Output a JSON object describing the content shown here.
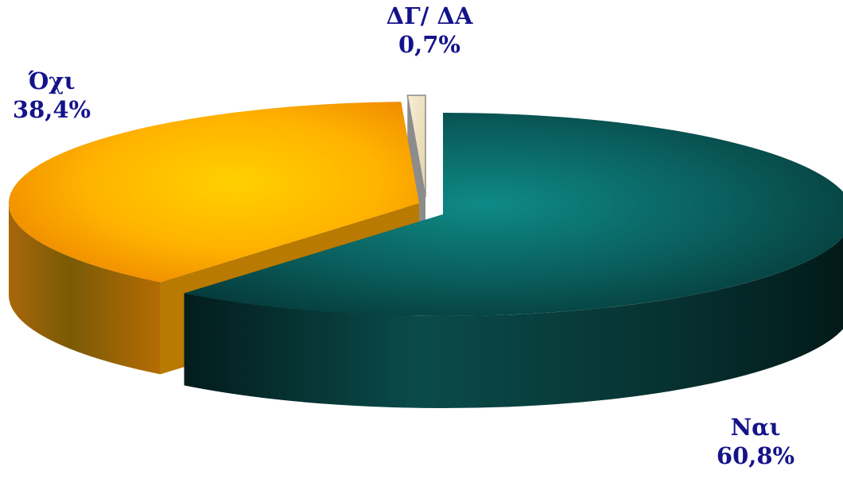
{
  "chart_data": {
    "type": "pie",
    "style": "3d-exploded",
    "slices": [
      {
        "key": "yes",
        "label": "Ναι",
        "value": 60.8,
        "value_label": "60,8%",
        "color": "#0b6e6c"
      },
      {
        "key": "no",
        "label": "Όχι",
        "value": 38.4,
        "value_label": "38,4%",
        "color": "#ffb400"
      },
      {
        "key": "dk",
        "label": "ΔΓ/ ΔΑ",
        "value": 0.7,
        "value_label": "0,7%",
        "color": "#efe3bf"
      }
    ],
    "label_color": "#14138a"
  }
}
